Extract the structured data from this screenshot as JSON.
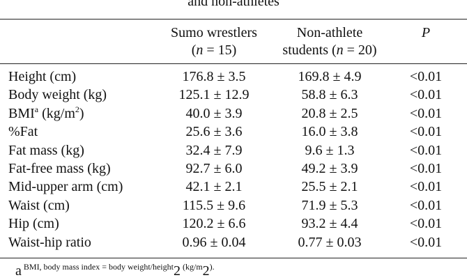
{
  "caption": "and non-athletes",
  "table": {
    "header": {
      "sumo": {
        "line1": "Sumo wrestlers",
        "line2": [
          "(",
          "n",
          " = 15)"
        ]
      },
      "non_athlete": {
        "line1": "Non-athlete",
        "line2": [
          "students (",
          "n",
          " = 20)"
        ]
      },
      "p": "P"
    },
    "rows": [
      [
        "Height (cm)",
        "176.8 ± 3.5",
        "169.8 ± 4.9",
        "<0.01"
      ],
      [
        "Body weight (kg)",
        "125.1 ± 12.9",
        "58.8 ± 6.3",
        "<0.01"
      ],
      [
        [
          "BMI",
          "a",
          " (kg/m",
          "2",
          ")"
        ],
        "40.0 ± 3.9",
        "20.8 ± 2.5",
        "<0.01"
      ],
      [
        "%Fat",
        "25.6 ± 3.6",
        "16.0 ± 3.8",
        "<0.01"
      ],
      [
        "Fat mass (kg)",
        "32.4 ± 7.9",
        "9.6 ± 1.3",
        "<0.01"
      ],
      [
        "Fat-free mass (kg)",
        "92.7 ± 6.0",
        "49.2 ± 3.9",
        "<0.01"
      ],
      [
        "Mid-upper arm (cm)",
        "42.1 ± 2.1",
        "25.5 ± 2.1",
        "<0.01"
      ],
      [
        "Waist (cm)",
        "115.5 ± 9.6",
        "71.9 ± 5.3",
        "<0.01"
      ],
      [
        "Hip (cm)",
        "120.2 ± 6.6",
        "93.2 ± 4.4",
        "<0.01"
      ],
      [
        "Waist-hip ratio",
        "0.96 ± 0.04",
        "0.77 ± 0.03",
        "<0.01"
      ]
    ],
    "footnote": [
      "a",
      " BMI, body mass index = body weight/height",
      "2",
      " (kg/m",
      "2",
      ")."
    ]
  }
}
